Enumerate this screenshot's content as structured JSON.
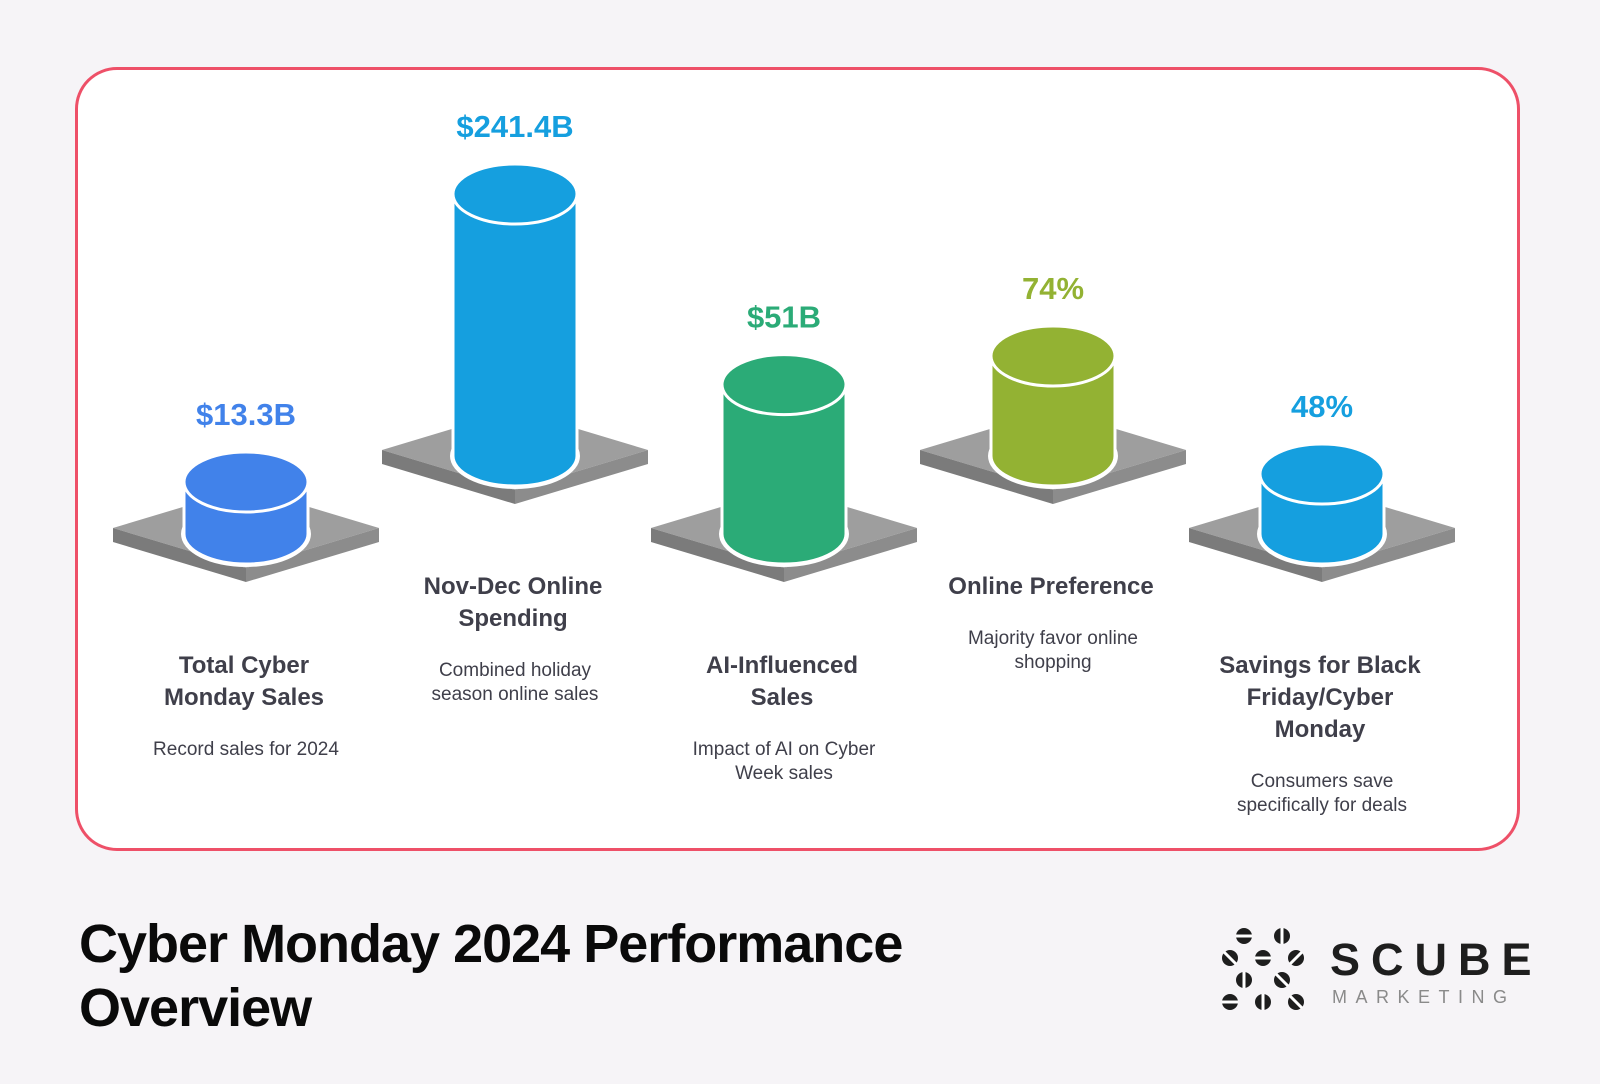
{
  "title": "Cyber Monday 2024 Performance Overview",
  "brand": {
    "name": "SCUBE",
    "sub": "MARKETING"
  },
  "colors": {
    "border": "#ee5068",
    "platform_top": "#9e9e9e",
    "platform_side": "#7b7b7b"
  },
  "chart_data": {
    "type": "bar",
    "title": "Cyber Monday 2024 Performance Overview",
    "xlabel": "",
    "ylabel": "",
    "categories": [
      "Total Cyber Monday Sales",
      "Nov-Dec Online Spending",
      "AI-Influenced Sales",
      "Online Preference",
      "Savings for Black Friday/Cyber Monday"
    ],
    "items": [
      {
        "value_label": "$13.3B",
        "value": 13.3,
        "unit": "billion USD",
        "label": [
          "Total Cyber",
          "Monday Sales"
        ],
        "desc": [
          "Record sales for 2024"
        ],
        "color": "#4182ea",
        "level": 1
      },
      {
        "value_label": "$241.4B",
        "value": 241.4,
        "unit": "billion USD",
        "label": [
          "Nov-Dec Online",
          "Spending"
        ],
        "desc": [
          "Combined holiday",
          "season online sales"
        ],
        "color": "#159fdf",
        "level": 0
      },
      {
        "value_label": "$51B",
        "value": 51,
        "unit": "billion USD",
        "label": [
          "AI-Influenced",
          "Sales"
        ],
        "desc": [
          "Impact of AI on Cyber",
          "Week sales"
        ],
        "color": "#2bab77",
        "level": 1
      },
      {
        "value_label": "74%",
        "value": 74,
        "unit": "percent",
        "label": [
          "Online Preference"
        ],
        "desc": [
          "Majority favor online",
          "shopping"
        ],
        "color": "#93b233",
        "level": 0
      },
      {
        "value_label": "48%",
        "value": 48,
        "unit": "percent",
        "label": [
          "Savings for Black",
          "Friday/Cyber",
          "Monday"
        ],
        "desc": [
          "Consumers save",
          "specifically for deals"
        ],
        "color": "#159fdf",
        "level": 1
      }
    ]
  }
}
